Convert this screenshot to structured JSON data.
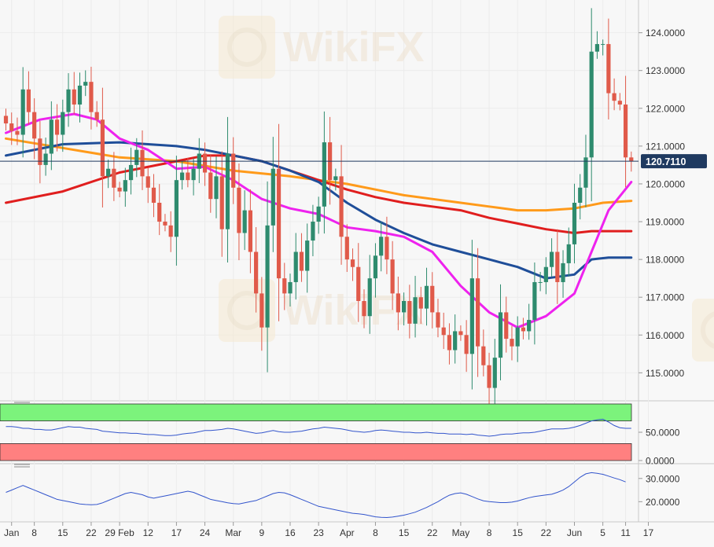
{
  "watermark": {
    "text": "WikiFX"
  },
  "last_price_label": "120.7110",
  "colors": {
    "up": "#2e8b6e",
    "down": "#e05a4a",
    "ma_magenta": "#ee22ee",
    "ma_blue": "#1f4e99",
    "ma_red": "#e01e1e",
    "ma_orange": "#ff9a1a",
    "osc_line": "#3355cc",
    "overbought": "#7cf37c",
    "oversold": "#ff8080",
    "last_price_bg": "#1f3a60"
  },
  "chart_data": [
    {
      "type": "candlestick",
      "title": "",
      "ylim": [
        114.3,
        124.7
      ],
      "y_ticks": [
        "115.0000",
        "116.0000",
        "117.0000",
        "118.0000",
        "119.0000",
        "120.0000",
        "121.0000",
        "122.0000",
        "123.0000",
        "124.0000"
      ],
      "x_ticks": [
        {
          "label": "Jan",
          "i": 1
        },
        {
          "label": "8",
          "i": 5
        },
        {
          "label": "15",
          "i": 10
        },
        {
          "label": "22",
          "i": 15
        },
        {
          "label": "29 Feb",
          "i": 20
        },
        {
          "label": "12",
          "i": 25
        },
        {
          "label": "17",
          "i": 30
        },
        {
          "label": "24",
          "i": 35
        },
        {
          "label": "Mar",
          "i": 40
        },
        {
          "label": "9",
          "i": 45
        },
        {
          "label": "16",
          "i": 50
        },
        {
          "label": "23",
          "i": 55
        },
        {
          "label": "Apr",
          "i": 60
        },
        {
          "label": "8",
          "i": 65
        },
        {
          "label": "15",
          "i": 70
        },
        {
          "label": "22",
          "i": 75
        },
        {
          "label": "May",
          "i": 80
        },
        {
          "label": "8",
          "i": 85
        },
        {
          "label": "15",
          "i": 90
        },
        {
          "label": "22",
          "i": 95
        },
        {
          "label": "Jun",
          "i": 100
        },
        {
          "label": "5",
          "i": 105
        },
        {
          "label": "11",
          "i": 109
        },
        {
          "label": "17",
          "i": 113
        }
      ],
      "close": [
        121.6,
        121.4,
        121.3,
        122.5,
        121.9,
        121.2,
        120.5,
        120.8,
        121.7,
        121.3,
        121.9,
        122.5,
        122.1,
        122.6,
        122.7,
        121.9,
        121.7,
        120.2,
        120.4,
        119.9,
        119.8,
        120.1,
        120.5,
        120.9,
        120.2,
        119.9,
        119.5,
        119.0,
        118.9,
        118.6,
        120.1,
        120.3,
        120.1,
        120.4,
        120.8,
        120.3,
        119.6,
        120.2,
        118.8,
        120.8,
        119.9,
        118.7,
        119.3,
        118.2,
        117.1,
        116.2,
        118.9,
        120.4,
        117.5,
        117.1,
        117.4,
        118.2,
        117.7,
        118.5,
        119.0,
        119.4,
        121.1,
        120.1,
        120.2,
        118.6,
        118.0,
        117.8,
        116.9,
        116.5,
        117.5,
        118.1,
        118.6,
        118.0,
        117.1,
        116.6,
        116.9,
        116.3,
        117.0,
        116.7,
        117.3,
        116.6,
        116.2,
        116.0,
        115.6,
        116.1,
        116.0,
        115.5,
        117.5,
        115.7,
        115.2,
        114.6,
        115.4,
        116.6,
        115.9,
        115.7,
        116.2,
        116.1,
        116.4,
        117.4,
        117.4,
        117.8,
        118.2,
        117.4,
        117.9,
        118.4,
        119.5,
        119.9,
        120.7,
        123.5,
        123.7,
        123.7,
        122.4,
        122.2,
        122.1,
        120.7,
        120.6
      ],
      "ma_magenta": [
        [
          0,
          121.35
        ],
        [
          6,
          121.7
        ],
        [
          12,
          121.85
        ],
        [
          16,
          121.7
        ],
        [
          20,
          121.2
        ],
        [
          25,
          120.9
        ],
        [
          30,
          120.4
        ],
        [
          35,
          120.45
        ],
        [
          40,
          120.1
        ],
        [
          45,
          119.6
        ],
        [
          50,
          119.35
        ],
        [
          55,
          119.2
        ],
        [
          60,
          118.85
        ],
        [
          65,
          118.75
        ],
        [
          70,
          118.6
        ],
        [
          75,
          118.2
        ],
        [
          80,
          117.3
        ],
        [
          85,
          116.6
        ],
        [
          90,
          116.2
        ],
        [
          95,
          116.5
        ],
        [
          100,
          117.1
        ],
        [
          103,
          118.2
        ],
        [
          106,
          119.3
        ],
        [
          110,
          120.05
        ]
      ],
      "ma_blue": [
        [
          0,
          120.75
        ],
        [
          10,
          121.05
        ],
        [
          20,
          121.1
        ],
        [
          30,
          121.0
        ],
        [
          35,
          120.9
        ],
        [
          40,
          120.75
        ],
        [
          45,
          120.6
        ],
        [
          50,
          120.35
        ],
        [
          55,
          120.05
        ],
        [
          60,
          119.5
        ],
        [
          65,
          119.05
        ],
        [
          70,
          118.7
        ],
        [
          75,
          118.4
        ],
        [
          80,
          118.2
        ],
        [
          85,
          118.0
        ],
        [
          90,
          117.8
        ],
        [
          95,
          117.5
        ],
        [
          100,
          117.6
        ],
        [
          103,
          118.0
        ],
        [
          106,
          118.05
        ],
        [
          110,
          118.05
        ]
      ],
      "ma_red": [
        [
          0,
          119.5
        ],
        [
          10,
          119.8
        ],
        [
          20,
          120.3
        ],
        [
          30,
          120.6
        ],
        [
          35,
          120.75
        ],
        [
          40,
          120.75
        ],
        [
          45,
          120.6
        ],
        [
          50,
          120.35
        ],
        [
          55,
          120.1
        ],
        [
          60,
          119.85
        ],
        [
          65,
          119.65
        ],
        [
          70,
          119.5
        ],
        [
          75,
          119.4
        ],
        [
          80,
          119.3
        ],
        [
          85,
          119.1
        ],
        [
          90,
          118.95
        ],
        [
          95,
          118.8
        ],
        [
          100,
          118.7
        ],
        [
          103,
          118.75
        ],
        [
          110,
          118.75
        ]
      ],
      "ma_orange": [
        [
          0,
          121.2
        ],
        [
          10,
          120.95
        ],
        [
          20,
          120.7
        ],
        [
          30,
          120.6
        ],
        [
          40,
          120.35
        ],
        [
          50,
          120.2
        ],
        [
          55,
          120.1
        ],
        [
          60,
          120.0
        ],
        [
          65,
          119.85
        ],
        [
          70,
          119.7
        ],
        [
          75,
          119.6
        ],
        [
          80,
          119.5
        ],
        [
          85,
          119.4
        ],
        [
          90,
          119.3
        ],
        [
          95,
          119.3
        ],
        [
          100,
          119.35
        ],
        [
          105,
          119.5
        ],
        [
          110,
          119.55
        ]
      ]
    },
    {
      "type": "line",
      "title": "",
      "ylim": [
        0,
        100
      ],
      "y_ticks": [
        "0.0000",
        "50.0000"
      ],
      "overbought": 70,
      "oversold": 30,
      "values": [
        60,
        60,
        59,
        57,
        57,
        55,
        55,
        54,
        54,
        56,
        58,
        60,
        59,
        59,
        57,
        56,
        55,
        52,
        51,
        50,
        49,
        49,
        48,
        48,
        47,
        46,
        46,
        45,
        44,
        44,
        45,
        47,
        48,
        49,
        51,
        53,
        53,
        54,
        55,
        57,
        56,
        54,
        52,
        50,
        48,
        49,
        51,
        53,
        51,
        50,
        50,
        51,
        52,
        54,
        56,
        57,
        59,
        58,
        57,
        56,
        54,
        52,
        51,
        50,
        51,
        53,
        54,
        53,
        52,
        51,
        50,
        50,
        49,
        49,
        50,
        49,
        48,
        48,
        47,
        47,
        47,
        46,
        47,
        45,
        44,
        43,
        44,
        46,
        47,
        47,
        48,
        49,
        49,
        50,
        52,
        54,
        56,
        56,
        56,
        57,
        59,
        62,
        66,
        70,
        72,
        73,
        68,
        62,
        58,
        57,
        57
      ]
    },
    {
      "type": "line",
      "title": "",
      "ylim": [
        12,
        35
      ],
      "y_ticks": [
        "20.0000",
        "30.0000"
      ],
      "values": [
        24,
        25,
        26,
        27,
        26,
        25,
        24,
        23,
        22,
        21,
        20.5,
        20,
        19.5,
        19,
        18.8,
        18.7,
        18.8,
        19.5,
        20.5,
        21.5,
        22.5,
        23.5,
        24,
        23.5,
        23,
        22,
        21.5,
        22,
        22.5,
        23,
        23.5,
        24,
        24.5,
        24,
        23,
        22,
        21,
        20.5,
        20,
        19.5,
        19.2,
        19,
        19.5,
        20,
        20.5,
        21.5,
        22.5,
        23.5,
        24,
        23.8,
        23,
        22,
        21,
        20,
        19,
        18,
        17.5,
        17,
        16.5,
        16,
        15.5,
        15,
        14.8,
        14.5,
        14,
        13.5,
        13.3,
        13.2,
        13.4,
        13.8,
        14.2,
        14.8,
        15.5,
        16.5,
        17.5,
        18.8,
        20,
        21.5,
        22.8,
        23.5,
        23.8,
        23.2,
        22.2,
        21.2,
        20.4,
        20,
        19.8,
        19.6,
        19.6,
        19.8,
        20.3,
        21,
        21.7,
        22.2,
        22.6,
        22.9,
        23.2,
        24,
        25,
        26.5,
        28.5,
        30.5,
        32,
        32.5,
        32.2,
        31.8,
        31,
        30.2,
        29.5,
        28.5
      ]
    }
  ]
}
